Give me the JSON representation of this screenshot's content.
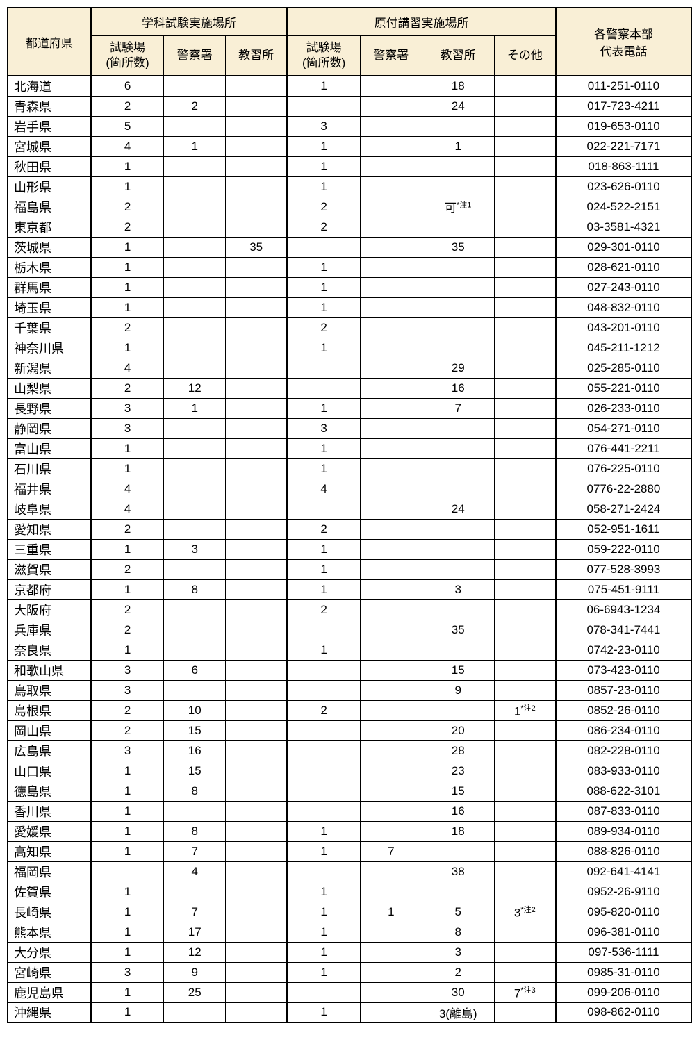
{
  "headers": {
    "pref": "都道府県",
    "group1": "学科試験実施場所",
    "group2": "原付講習実施場所",
    "phone": "各警察本部\n代表電話",
    "sub1": "試験場\n(箇所数)",
    "sub2": "警察署",
    "sub3": "教習所",
    "sub4": "試験場\n(箇所数)",
    "sub5": "警察署",
    "sub6": "教習所",
    "sub7": "その他"
  },
  "rows": [
    {
      "pref": "北海道",
      "a1": "6",
      "a2": "",
      "a3": "",
      "b1": "1",
      "b2": "",
      "b3": "18",
      "b4": "",
      "ph": "011-251-0110"
    },
    {
      "pref": "青森県",
      "a1": "2",
      "a2": "2",
      "a3": "",
      "b1": "",
      "b2": "",
      "b3": "24",
      "b4": "",
      "ph": "017-723-4211"
    },
    {
      "pref": "岩手県",
      "a1": "5",
      "a2": "",
      "a3": "",
      "b1": "3",
      "b2": "",
      "b3": "",
      "b4": "",
      "ph": "019-653-0110"
    },
    {
      "pref": "宮城県",
      "a1": "4",
      "a2": "1",
      "a3": "",
      "b1": "1",
      "b2": "",
      "b3": "1",
      "b4": "",
      "ph": "022-221-7171"
    },
    {
      "pref": "秋田県",
      "a1": "1",
      "a2": "",
      "a3": "",
      "b1": "1",
      "b2": "",
      "b3": "",
      "b4": "",
      "ph": "018-863-1111"
    },
    {
      "pref": "山形県",
      "a1": "1",
      "a2": "",
      "a3": "",
      "b1": "1",
      "b2": "",
      "b3": "",
      "b4": "",
      "ph": "023-626-0110"
    },
    {
      "pref": "福島県",
      "a1": "2",
      "a2": "",
      "a3": "",
      "b1": "2",
      "b2": "",
      "b3": "可",
      "b3note": "*注1",
      "b4": "",
      "ph": "024-522-2151"
    },
    {
      "pref": "東京都",
      "a1": "2",
      "a2": "",
      "a3": "",
      "b1": "2",
      "b2": "",
      "b3": "",
      "b4": "",
      "ph": "03-3581-4321"
    },
    {
      "pref": "茨城県",
      "a1": "1",
      "a2": "",
      "a3": "35",
      "b1": "",
      "b2": "",
      "b3": "35",
      "b4": "",
      "ph": "029-301-0110"
    },
    {
      "pref": "栃木県",
      "a1": "1",
      "a2": "",
      "a3": "",
      "b1": "1",
      "b2": "",
      "b3": "",
      "b4": "",
      "ph": "028-621-0110"
    },
    {
      "pref": "群馬県",
      "a1": "1",
      "a2": "",
      "a3": "",
      "b1": "1",
      "b2": "",
      "b3": "",
      "b4": "",
      "ph": "027-243-0110"
    },
    {
      "pref": "埼玉県",
      "a1": "1",
      "a2": "",
      "a3": "",
      "b1": "1",
      "b2": "",
      "b3": "",
      "b4": "",
      "ph": "048-832-0110"
    },
    {
      "pref": "千葉県",
      "a1": "2",
      "a2": "",
      "a3": "",
      "b1": "2",
      "b2": "",
      "b3": "",
      "b4": "",
      "ph": "043-201-0110"
    },
    {
      "pref": "神奈川県",
      "a1": "1",
      "a2": "",
      "a3": "",
      "b1": "1",
      "b2": "",
      "b3": "",
      "b4": "",
      "ph": "045-211-1212"
    },
    {
      "pref": "新潟県",
      "a1": "4",
      "a2": "",
      "a3": "",
      "b1": "",
      "b2": "",
      "b3": "29",
      "b4": "",
      "ph": "025-285-0110"
    },
    {
      "pref": "山梨県",
      "a1": "2",
      "a2": "12",
      "a3": "",
      "b1": "",
      "b2": "",
      "b3": "16",
      "b4": "",
      "ph": "055-221-0110"
    },
    {
      "pref": "長野県",
      "a1": "3",
      "a2": "1",
      "a3": "",
      "b1": "1",
      "b2": "",
      "b3": "7",
      "b4": "",
      "ph": "026-233-0110"
    },
    {
      "pref": "静岡県",
      "a1": "3",
      "a2": "",
      "a3": "",
      "b1": "3",
      "b2": "",
      "b3": "",
      "b4": "",
      "ph": "054-271-0110"
    },
    {
      "pref": "富山県",
      "a1": "1",
      "a2": "",
      "a3": "",
      "b1": "1",
      "b2": "",
      "b3": "",
      "b4": "",
      "ph": "076-441-2211"
    },
    {
      "pref": "石川県",
      "a1": "1",
      "a2": "",
      "a3": "",
      "b1": "1",
      "b2": "",
      "b3": "",
      "b4": "",
      "ph": "076-225-0110"
    },
    {
      "pref": "福井県",
      "a1": "4",
      "a2": "",
      "a3": "",
      "b1": "4",
      "b2": "",
      "b3": "",
      "b4": "",
      "ph": "0776-22-2880"
    },
    {
      "pref": "岐阜県",
      "a1": "4",
      "a2": "",
      "a3": "",
      "b1": "",
      "b2": "",
      "b3": "24",
      "b4": "",
      "ph": "058-271-2424"
    },
    {
      "pref": "愛知県",
      "a1": "2",
      "a2": "",
      "a3": "",
      "b1": "2",
      "b2": "",
      "b3": "",
      "b4": "",
      "ph": "052-951-1611"
    },
    {
      "pref": "三重県",
      "a1": "1",
      "a2": "3",
      "a3": "",
      "b1": "1",
      "b2": "",
      "b3": "",
      "b4": "",
      "ph": "059-222-0110"
    },
    {
      "pref": "滋賀県",
      "a1": "2",
      "a2": "",
      "a3": "",
      "b1": "1",
      "b2": "",
      "b3": "",
      "b4": "",
      "ph": "077-528-3993"
    },
    {
      "pref": "京都府",
      "a1": "1",
      "a2": "8",
      "a3": "",
      "b1": "1",
      "b2": "",
      "b3": "3",
      "b4": "",
      "ph": "075-451-9111"
    },
    {
      "pref": "大阪府",
      "a1": "2",
      "a2": "",
      "a3": "",
      "b1": "2",
      "b2": "",
      "b3": "",
      "b4": "",
      "ph": "06-6943-1234"
    },
    {
      "pref": "兵庫県",
      "a1": "2",
      "a2": "",
      "a3": "",
      "b1": "",
      "b2": "",
      "b3": "35",
      "b4": "",
      "ph": "078-341-7441"
    },
    {
      "pref": "奈良県",
      "a1": "1",
      "a2": "",
      "a3": "",
      "b1": "1",
      "b2": "",
      "b3": "",
      "b4": "",
      "ph": "0742-23-0110"
    },
    {
      "pref": "和歌山県",
      "a1": "3",
      "a2": "6",
      "a3": "",
      "b1": "",
      "b2": "",
      "b3": "15",
      "b4": "",
      "ph": "073-423-0110"
    },
    {
      "pref": "鳥取県",
      "a1": "3",
      "a2": "",
      "a3": "",
      "b1": "",
      "b2": "",
      "b3": "9",
      "b4": "",
      "ph": "0857-23-0110"
    },
    {
      "pref": "島根県",
      "a1": "2",
      "a2": "10",
      "a3": "",
      "b1": "2",
      "b2": "",
      "b3": "",
      "b4": "1",
      "b4note": "*注2",
      "ph": "0852-26-0110"
    },
    {
      "pref": "岡山県",
      "a1": "2",
      "a2": "15",
      "a3": "",
      "b1": "",
      "b2": "",
      "b3": "20",
      "b4": "",
      "ph": "086-234-0110"
    },
    {
      "pref": "広島県",
      "a1": "3",
      "a2": "16",
      "a3": "",
      "b1": "",
      "b2": "",
      "b3": "28",
      "b4": "",
      "ph": "082-228-0110"
    },
    {
      "pref": "山口県",
      "a1": "1",
      "a2": "15",
      "a3": "",
      "b1": "",
      "b2": "",
      "b3": "23",
      "b4": "",
      "ph": "083-933-0110"
    },
    {
      "pref": "徳島県",
      "a1": "1",
      "a2": "8",
      "a3": "",
      "b1": "",
      "b2": "",
      "b3": "15",
      "b4": "",
      "ph": "088-622-3101"
    },
    {
      "pref": "香川県",
      "a1": "1",
      "a2": "",
      "a3": "",
      "b1": "",
      "b2": "",
      "b3": "16",
      "b4": "",
      "ph": "087-833-0110"
    },
    {
      "pref": "愛媛県",
      "a1": "1",
      "a2": "8",
      "a3": "",
      "b1": "1",
      "b2": "",
      "b3": "18",
      "b4": "",
      "ph": "089-934-0110"
    },
    {
      "pref": "高知県",
      "a1": "1",
      "a2": "7",
      "a3": "",
      "b1": "1",
      "b2": "7",
      "b3": "",
      "b4": "",
      "ph": "088-826-0110"
    },
    {
      "pref": "福岡県",
      "a1": "",
      "a2": "4",
      "a3": "",
      "b1": "",
      "b2": "",
      "b3": "38",
      "b4": "",
      "ph": "092-641-4141"
    },
    {
      "pref": "佐賀県",
      "a1": "1",
      "a2": "",
      "a3": "",
      "b1": "1",
      "b2": "",
      "b3": "",
      "b4": "",
      "ph": "0952-26-9110"
    },
    {
      "pref": "長崎県",
      "a1": "1",
      "a2": "7",
      "a3": "",
      "b1": "1",
      "b2": "1",
      "b3": "5",
      "b4": "3",
      "b4note": "*注2",
      "ph": "095-820-0110"
    },
    {
      "pref": "熊本県",
      "a1": "1",
      "a2": "17",
      "a3": "",
      "b1": "1",
      "b2": "",
      "b3": "8",
      "b4": "",
      "ph": "096-381-0110"
    },
    {
      "pref": "大分県",
      "a1": "1",
      "a2": "12",
      "a3": "",
      "b1": "1",
      "b2": "",
      "b3": "3",
      "b4": "",
      "ph": "097-536-1111"
    },
    {
      "pref": "宮崎県",
      "a1": "3",
      "a2": "9",
      "a3": "",
      "b1": "1",
      "b2": "",
      "b3": "2",
      "b4": "",
      "ph": "0985-31-0110"
    },
    {
      "pref": "鹿児島県",
      "a1": "1",
      "a2": "25",
      "a3": "",
      "b1": "",
      "b2": "",
      "b3": "30",
      "b4": "7",
      "b4note": "*注3",
      "ph": "099-206-0110"
    },
    {
      "pref": "沖縄県",
      "a1": "1",
      "a2": "",
      "a3": "",
      "b1": "1",
      "b2": "",
      "b3": "3(離島)",
      "b4": "",
      "ph": "098-862-0110"
    }
  ]
}
